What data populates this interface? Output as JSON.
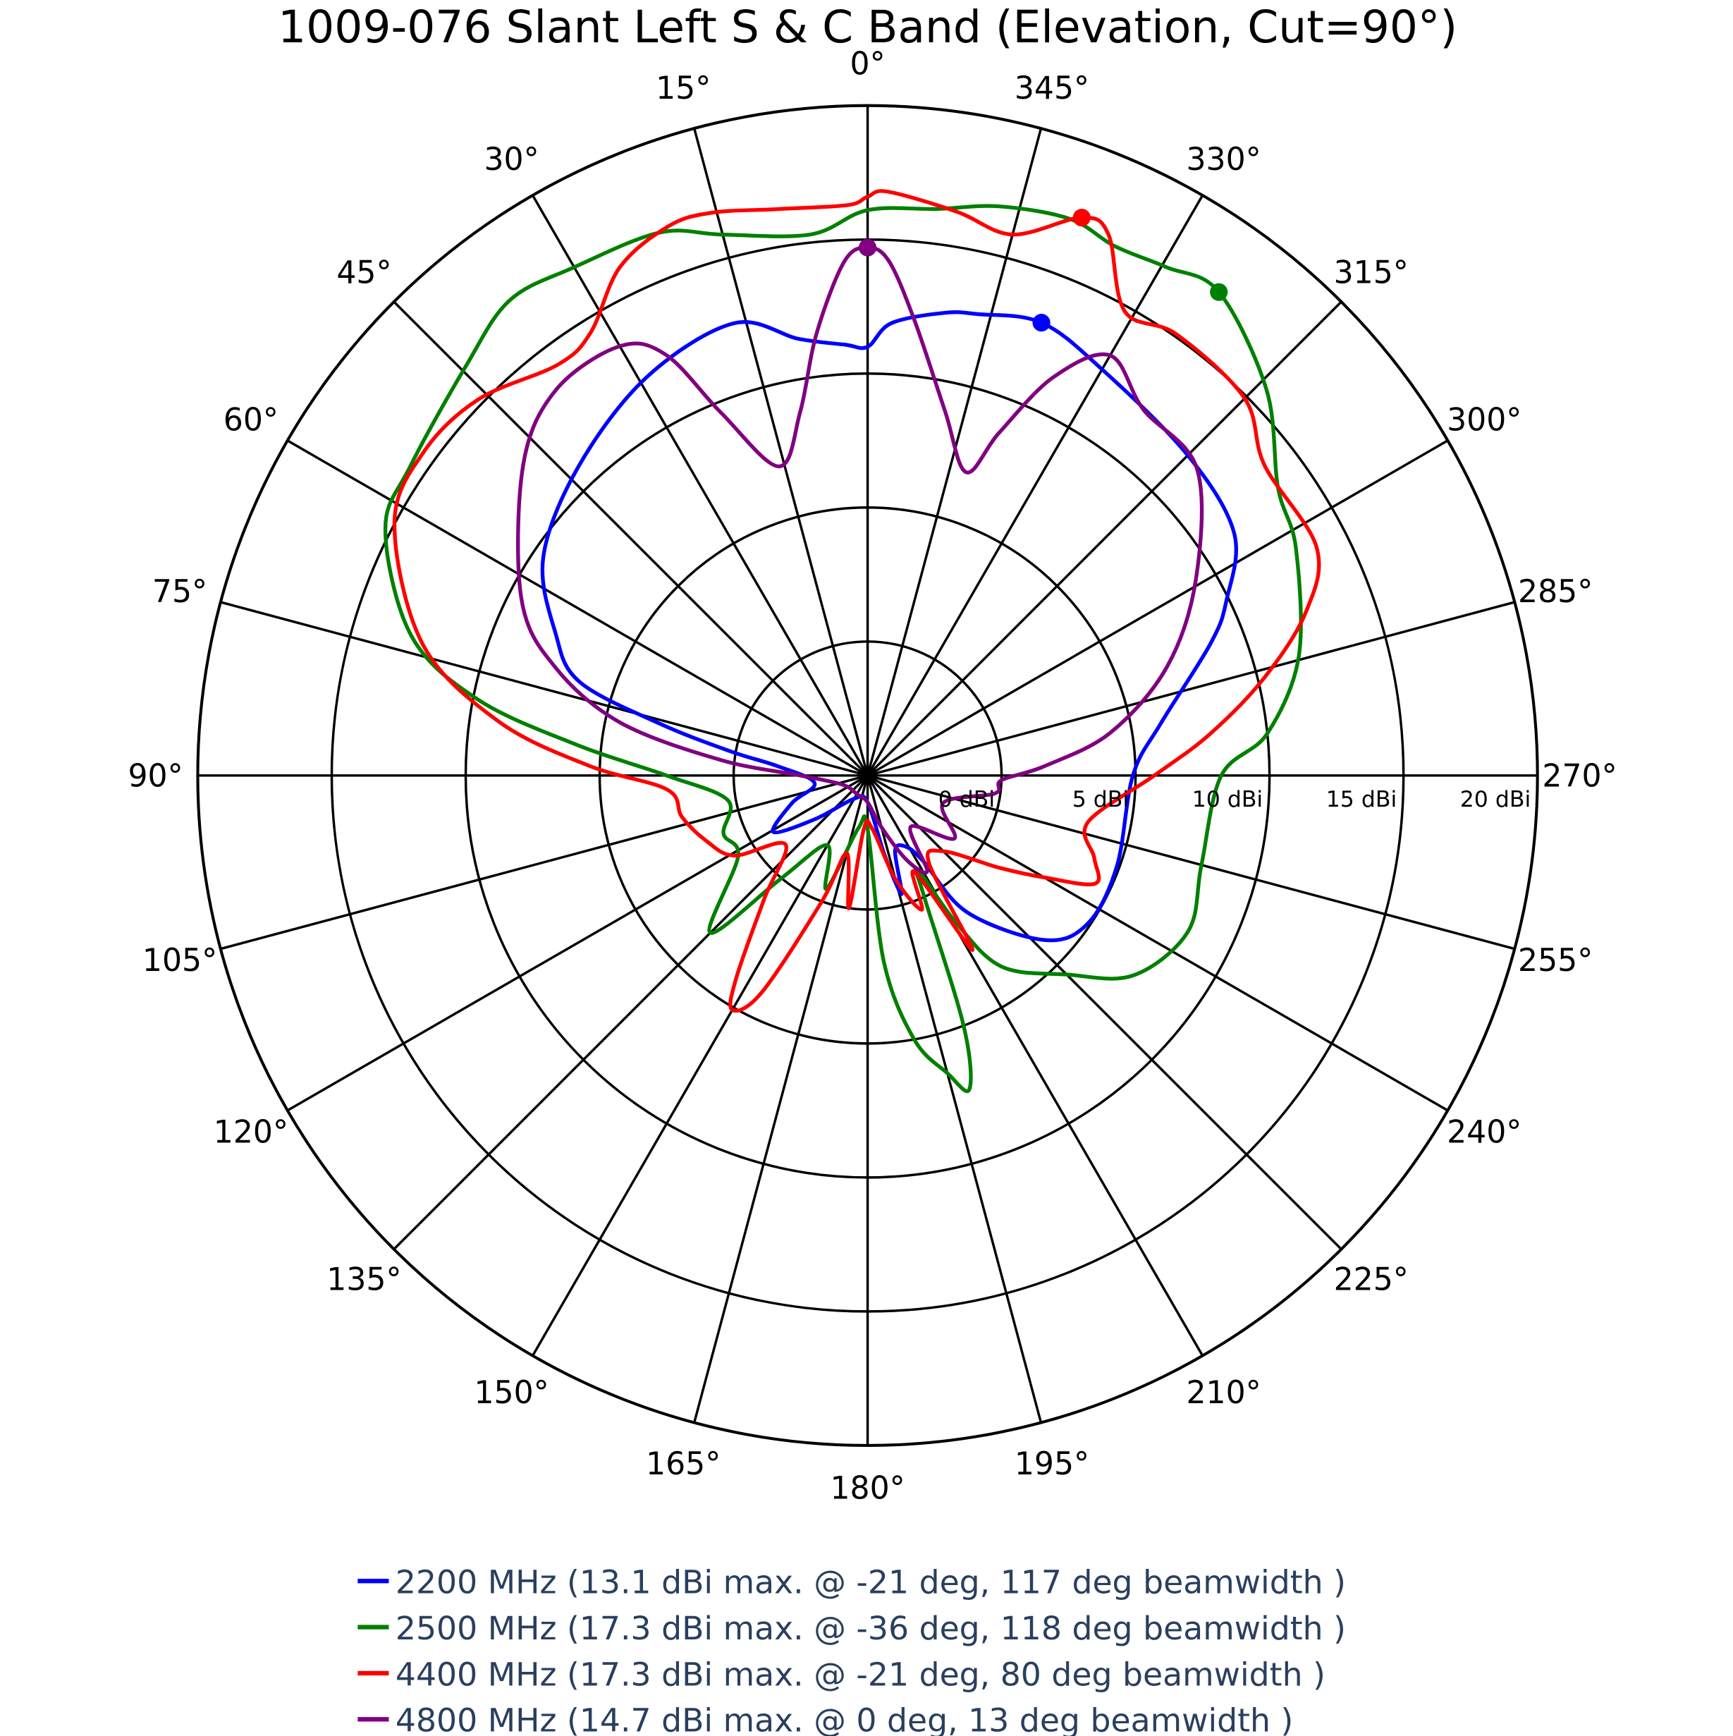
{
  "chart_data": {
    "type": "polar-line",
    "title": "1009-076 Slant Left S & C Band (Elevation, Cut=90°)",
    "angular_axis": {
      "direction": "counterclockwise",
      "zero_at": "top",
      "ticks": [
        0,
        15,
        30,
        45,
        60,
        75,
        90,
        105,
        120,
        135,
        150,
        165,
        180,
        195,
        210,
        225,
        240,
        255,
        270,
        285,
        300,
        315,
        330,
        345
      ],
      "tick_labels": [
        "0°",
        "15°",
        "30°",
        "45°",
        "60°",
        "75°",
        "90°",
        "105°",
        "120°",
        "135°",
        "150°",
        "165°",
        "180°",
        "195°",
        "210°",
        "225°",
        "240°",
        "255°",
        "270°",
        "285°",
        "300°",
        "315°",
        "330°",
        "345°"
      ]
    },
    "radial_axis": {
      "range": [
        -5,
        20
      ],
      "ticks": [
        0,
        5,
        10,
        15,
        20
      ],
      "tick_labels": [
        "0 dBi",
        "5 dBi",
        "10 dBi",
        "15 dBi",
        "20 dBi"
      ]
    },
    "grid": true,
    "legend_position": "bottom",
    "series": [
      {
        "name": "2200 MHz (13.1 dBi max. @ -21 deg, 117 deg beamwidth )",
        "color": "#0000ff",
        "max_marker": {
          "angle": 339,
          "value": 13.1
        },
        "points": [
          [
            0,
            11.0
          ],
          [
            3,
            11.1
          ],
          [
            9,
            11.5
          ],
          [
            16.5,
            12.6
          ],
          [
            29,
            12.0
          ],
          [
            43,
            10.8
          ],
          [
            56,
            9.6
          ],
          [
            65.5,
            7.8
          ],
          [
            72,
            6.3
          ],
          [
            76,
            3
          ],
          [
            80,
            0.2
          ],
          [
            84,
            -1.6
          ],
          [
            98,
            -3
          ],
          [
            110,
            -2
          ],
          [
            121,
            -0.9
          ],
          [
            130,
            -2.5
          ],
          [
            150,
            -4
          ],
          [
            180,
            -4
          ],
          [
            192,
            -2
          ],
          [
            196,
            -0.4
          ],
          [
            200,
            -2
          ],
          [
            208,
            -2
          ],
          [
            213,
            -1.2
          ],
          [
            216,
            1.3
          ],
          [
            227,
            4.0
          ],
          [
            236,
            4.9
          ],
          [
            250,
            4.9
          ],
          [
            270,
            4.9
          ],
          [
            280,
            6.1
          ],
          [
            291,
            8.7
          ],
          [
            296,
            9.9
          ],
          [
            303.5,
            11.4
          ],
          [
            315,
            11.9
          ],
          [
            330,
            12.5
          ],
          [
            339,
            13.1
          ],
          [
            346.6,
            12.7
          ],
          [
            350.6,
            12.5
          ],
          [
            357,
            11.9
          ]
        ]
      },
      {
        "name": "2500 MHz (17.3 dBi max. @ -36 deg, 118 deg beamwidth )",
        "color": "#008000",
        "max_marker": {
          "angle": 324,
          "value": 17.3
        },
        "points": [
          [
            0,
            16.1
          ],
          [
            6,
            15.3
          ],
          [
            15,
            15.9
          ],
          [
            21,
            16.7
          ],
          [
            30,
            16.9
          ],
          [
            37,
            17.2
          ],
          [
            44.5,
            16.4
          ],
          [
            56,
            15.6
          ],
          [
            63,
            15.2
          ],
          [
            73,
            12.8
          ],
          [
            79,
            9.8
          ],
          [
            84,
            5.9
          ],
          [
            90,
            2.5
          ],
          [
            100,
            0.3
          ],
          [
            112,
            0.8
          ],
          [
            122,
            0.7
          ],
          [
            135,
            3.3
          ],
          [
            140,
            0
          ],
          [
            150,
            -2
          ],
          [
            160,
            -0.5
          ],
          [
            170,
            -3
          ],
          [
            180,
            -3
          ],
          [
            185,
            2
          ],
          [
            190,
            5
          ],
          [
            195,
            6.5
          ],
          [
            198,
            7.3
          ],
          [
            201,
            5
          ],
          [
            205,
            0
          ],
          [
            208,
            -1
          ],
          [
            211,
            1.4
          ],
          [
            215,
            3.7
          ],
          [
            225,
            5.5
          ],
          [
            233,
            7.4
          ],
          [
            244,
            8.3
          ],
          [
            255,
            7.9
          ],
          [
            270,
            8.2
          ],
          [
            276,
            10
          ],
          [
            285.5,
            11.7
          ],
          [
            298,
            13.1
          ],
          [
            305,
            13.7
          ],
          [
            314,
            15.7
          ],
          [
            324,
            17.3
          ],
          [
            329.6,
            17.0
          ],
          [
            335,
            16.8
          ],
          [
            340,
            17.1
          ],
          [
            347,
            16.8
          ],
          [
            353,
            16.3
          ]
        ]
      },
      {
        "name": "4400 MHz (17.3 dBi max. @ -21 deg, 80 deg beamwidth )",
        "color": "#ff0000",
        "max_marker": {
          "angle": 339,
          "value": 17.3
        },
        "points": [
          [
            0,
            16.6
          ],
          [
            2,
            16.3
          ],
          [
            9,
            16.4
          ],
          [
            15.6,
            16.8
          ],
          [
            20,
            16.8
          ],
          [
            26,
            16.1
          ],
          [
            32,
            14.5
          ],
          [
            37,
            14.2
          ],
          [
            46,
            15.2
          ],
          [
            54,
            15.5
          ],
          [
            62,
            15.0
          ],
          [
            73.6,
            12.3
          ],
          [
            81.7,
            8.9
          ],
          [
            88,
            5.4
          ],
          [
            94,
            2.5
          ],
          [
            102.6,
            2.1
          ],
          [
            112,
            1.5
          ],
          [
            121,
            0.8
          ],
          [
            130,
            -1
          ],
          [
            140,
            1
          ],
          [
            147,
            4
          ],
          [
            150,
            5.1
          ],
          [
            154,
            4
          ],
          [
            160,
            0
          ],
          [
            165,
            -2
          ],
          [
            172,
            0
          ],
          [
            176,
            -3
          ],
          [
            185,
            -3
          ],
          [
            195,
            -1
          ],
          [
            202,
            0.4
          ],
          [
            206,
            -1
          ],
          [
            211,
            2.6
          ],
          [
            215,
            -1
          ],
          [
            225,
            -1
          ],
          [
            235,
            1
          ],
          [
            240,
            2.6
          ],
          [
            244.6,
            4.4
          ],
          [
            250,
            4
          ],
          [
            258,
            3.4
          ],
          [
            270,
            5.7
          ],
          [
            277,
            7.9
          ],
          [
            284,
            10.3
          ],
          [
            290.6,
            12.5
          ],
          [
            297,
            13.8
          ],
          [
            308,
            13.8
          ],
          [
            315,
            14.9
          ],
          [
            325,
            15.1
          ],
          [
            331,
            14.8
          ],
          [
            336,
            17.1
          ],
          [
            339,
            17.3
          ],
          [
            345,
            15.9
          ],
          [
            351,
            16.3
          ],
          [
            358,
            16.8
          ]
        ]
      },
      {
        "name": "4800 MHz (14.7 dBi max. @ 0 deg, 13 deg beamwidth )",
        "color": "#800080",
        "max_marker": {
          "angle": 0,
          "value": 14.7
        },
        "points": [
          [
            0,
            14.7
          ],
          [
            2.6,
            14.2
          ],
          [
            6.6,
            11.6
          ],
          [
            10.5,
            8.8
          ],
          [
            16,
            7.0
          ],
          [
            22,
            9.6
          ],
          [
            25.6,
            12.4
          ],
          [
            30,
            13.5
          ],
          [
            39,
            13.5
          ],
          [
            48,
            12.3
          ],
          [
            63,
            9.5
          ],
          [
            71,
            7.3
          ],
          [
            78,
            4.4
          ],
          [
            84,
            0.5
          ],
          [
            90,
            -2.5
          ],
          [
            110,
            -4
          ],
          [
            150,
            -4.2
          ],
          [
            180,
            -4
          ],
          [
            195,
            -3
          ],
          [
            205,
            -1.5
          ],
          [
            212,
            -0.8
          ],
          [
            220,
            -2.5
          ],
          [
            234,
            -1
          ],
          [
            250,
            -2
          ],
          [
            262,
            -0.2
          ],
          [
            268,
            0
          ],
          [
            273,
            1.6
          ],
          [
            280,
            4.2
          ],
          [
            290,
            6.9
          ],
          [
            301,
            9.3
          ],
          [
            313,
            11.8
          ],
          [
            323,
            12.1
          ],
          [
            330,
            13.1
          ],
          [
            335,
            11.4
          ],
          [
            339,
            8.7
          ],
          [
            342,
            6.9
          ],
          [
            348,
            8.9
          ],
          [
            354,
            12.0
          ],
          [
            357.6,
            14.2
          ]
        ]
      }
    ]
  }
}
